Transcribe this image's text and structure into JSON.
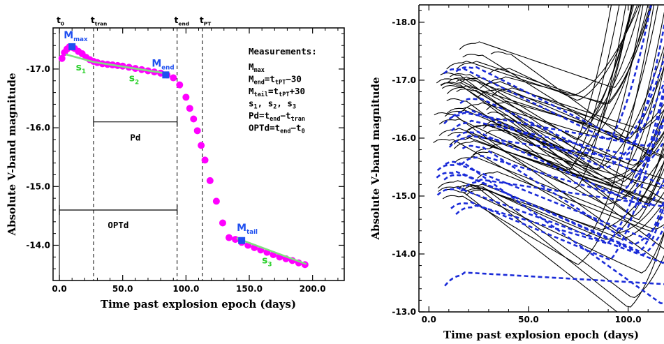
{
  "chart_data": [
    {
      "type": "scatter",
      "xlabel": "Time past explosion epoch (days)",
      "ylabel": "Absolute V-band magnitude",
      "xlim": [
        -5,
        225
      ],
      "ylim": [
        -13.4,
        -17.7
      ],
      "x_ticks": [
        "0.0",
        "50.0",
        "100.0",
        "150.0",
        "200.0"
      ],
      "y_ticks": [
        "-17.0",
        "-16.0",
        "-15.0",
        "-14.0"
      ],
      "series": [
        {
          "color": "#ff00ff",
          "marker": "circle",
          "x": [
            2,
            4,
            6,
            8,
            10,
            12,
            15,
            18,
            21,
            24,
            27,
            30,
            34,
            38,
            42,
            46,
            50,
            55,
            60,
            65,
            70,
            75,
            80,
            85,
            90,
            95,
            100,
            103,
            106,
            109,
            112,
            115,
            119,
            124,
            129,
            134,
            139,
            144,
            149,
            154,
            159,
            164,
            169,
            174,
            179,
            184,
            189,
            194
          ],
          "y": [
            -17.18,
            -17.28,
            -17.34,
            -17.38,
            -17.37,
            -17.35,
            -17.3,
            -17.26,
            -17.2,
            -17.16,
            -17.13,
            -17.11,
            -17.09,
            -17.08,
            -17.07,
            -17.06,
            -17.05,
            -17.03,
            -17.01,
            -16.99,
            -16.97,
            -16.95,
            -16.93,
            -16.9,
            -16.85,
            -16.73,
            -16.52,
            -16.33,
            -16.15,
            -15.95,
            -15.7,
            -15.45,
            -15.1,
            -14.75,
            -14.38,
            -14.13,
            -14.1,
            -14.05,
            -14.0,
            -13.96,
            -13.92,
            -13.88,
            -13.84,
            -13.8,
            -13.77,
            -13.74,
            -13.7,
            -13.67
          ]
        },
        {
          "color": "#2050f0",
          "marker": "square",
          "x": [
            10,
            84,
            144
          ],
          "y": [
            -17.38,
            -16.9,
            -14.08
          ]
        }
      ],
      "fits": [
        {
          "name": "s1",
          "x": [
            5,
            27
          ],
          "y": [
            -17.25,
            -17.12
          ]
        },
        {
          "name": "s2",
          "x": [
            27,
            86
          ],
          "y": [
            -17.12,
            -16.92
          ]
        },
        {
          "name": "s3",
          "x": [
            140,
            195
          ],
          "y": [
            -14.12,
            -13.68
          ]
        }
      ],
      "vlines": [
        {
          "x": 0,
          "label": "t0"
        },
        {
          "x": 27,
          "label": "ttran"
        },
        {
          "x": 93,
          "label": "tend"
        },
        {
          "x": 113,
          "label": "tPT"
        }
      ],
      "labels": {
        "t0": {
          "main": "t",
          "sub": "0"
        },
        "ttran": {
          "main": "t",
          "sub": "tran"
        },
        "tend": {
          "main": "t",
          "sub": "end"
        },
        "tPT": {
          "main": "t",
          "sub": "PT"
        },
        "mmax": {
          "main": "M",
          "sub": "max"
        },
        "mend": {
          "main": "M",
          "sub": "end"
        },
        "mtail": {
          "main": "M",
          "sub": "tail"
        },
        "s1": {
          "main": "s",
          "sub": "1"
        },
        "s2": {
          "main": "s",
          "sub": "2"
        },
        "s3": {
          "main": "s",
          "sub": "3"
        },
        "pd": "Pd",
        "optd": "OPTd"
      },
      "measurements": {
        "title": "Measurements:",
        "lines": [
          [
            [
              "M",
              ""
            ],
            [
              "max",
              "sub"
            ]
          ],
          [
            [
              "M",
              ""
            ],
            [
              "end",
              "sub"
            ],
            [
              "=t",
              ""
            ],
            [
              "tPT",
              "sub"
            ],
            [
              "−30",
              ""
            ]
          ],
          [
            [
              "M",
              ""
            ],
            [
              "tail",
              "sub"
            ],
            [
              "=t",
              ""
            ],
            [
              "tPT",
              "sub"
            ],
            [
              "+30",
              ""
            ]
          ],
          [
            [
              "s",
              ""
            ],
            [
              "1",
              "sub"
            ],
            [
              ", s",
              ""
            ],
            [
              "2",
              "sub"
            ],
            [
              ", s",
              ""
            ],
            [
              "3",
              "sub"
            ]
          ],
          [
            [
              "Pd=t",
              ""
            ],
            [
              "end",
              "sub"
            ],
            [
              "−t",
              ""
            ],
            [
              "tran",
              "sub"
            ]
          ],
          [
            [
              "OPTd=t",
              ""
            ],
            [
              "end",
              "sub"
            ],
            [
              "−t",
              ""
            ],
            [
              "0",
              "sub"
            ]
          ]
        ]
      }
    },
    {
      "type": "line",
      "xlabel": "Time past explosion epoch (days)",
      "ylabel": "Absolute V-band magnitude",
      "xlim": [
        -5,
        125
      ],
      "ylim": [
        -13.0,
        -18.3
      ],
      "x_ticks": [
        "0.0",
        "50.0",
        "100.0"
      ],
      "y_ticks": [
        "-18.0",
        "-17.0",
        "-16.0",
        "-15.0",
        "-14.0",
        "-13.0"
      ],
      "series_colors": {
        "solid": "#000000",
        "dashed": "#1a2bd8"
      }
    }
  ]
}
